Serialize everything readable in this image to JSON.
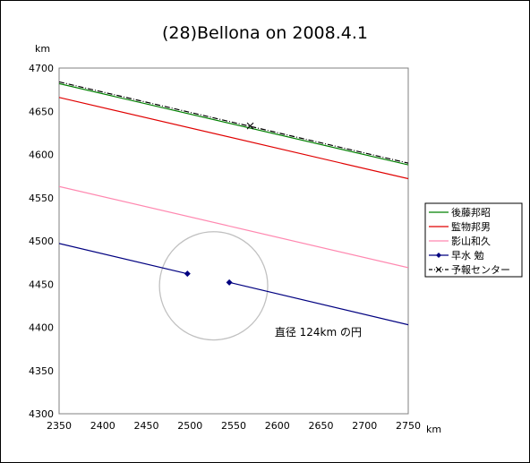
{
  "chart_data": {
    "type": "line",
    "title": "(28)Bellona on 2008.4.1",
    "xlabel": "km",
    "ylabel": "km",
    "xlim": [
      2350,
      2750
    ],
    "ylim": [
      4300,
      4700
    ],
    "xticks": [
      2350,
      2400,
      2450,
      2500,
      2550,
      2600,
      2650,
      2700,
      2750
    ],
    "yticks": [
      4300,
      4350,
      4400,
      4450,
      4500,
      4550,
      4600,
      4650,
      4700
    ],
    "grid": false,
    "legend_position": "right",
    "series": [
      {
        "name": "後藤邦昭",
        "color": "#008000",
        "style": "solid",
        "x": [
          2350,
          2750
        ],
        "y": [
          4682,
          4588
        ]
      },
      {
        "name": "監物邦男",
        "color": "#e00000",
        "style": "solid",
        "x": [
          2350,
          2750
        ],
        "y": [
          4666,
          4572
        ]
      },
      {
        "name": "影山和久",
        "color": "#ff88b0",
        "style": "solid",
        "x": [
          2350,
          2750
        ],
        "y": [
          4563,
          4469
        ]
      },
      {
        "name": "早水 勉",
        "color": "#000080",
        "style": "solid-marker",
        "segments": [
          {
            "x": [
              2350,
              2497
            ],
            "y": [
              4497,
              4462
            ]
          },
          {
            "x": [
              2545,
              2750
            ],
            "y": [
              4452,
              4403
            ]
          }
        ],
        "points": [
          {
            "x": 2497,
            "y": 4462
          },
          {
            "x": 2545,
            "y": 4452
          }
        ]
      },
      {
        "name": "予報センター",
        "color": "#000000",
        "style": "dash-dot",
        "x": [
          2350,
          2750
        ],
        "y": [
          4684,
          4590
        ],
        "points": [
          {
            "x": 2569,
            "y": 4633
          }
        ]
      }
    ],
    "circle": {
      "center": {
        "x": 2527,
        "y": 4448
      },
      "diameter": 124,
      "color": "#c0c0c0"
    },
    "annotation": {
      "text": "直径 124km の円",
      "x": 2597,
      "y": 4390
    }
  }
}
